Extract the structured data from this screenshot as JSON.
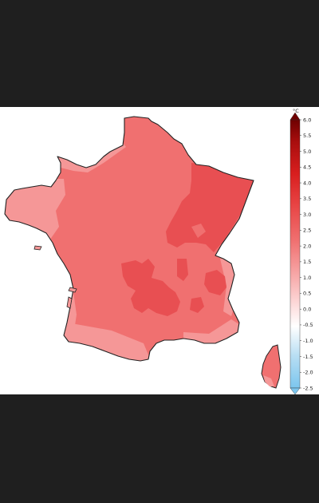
{
  "map": {
    "unit": "°C",
    "colorbar_ticks": [
      "6.0",
      "5.5",
      "5.0",
      "4.5",
      "4.0",
      "3.5",
      "3.0",
      "2.5",
      "2.0",
      "1.5",
      "1.0",
      "0.5",
      "0.0",
      "-0.5",
      "-1.0",
      "-1.5",
      "-2.0",
      "-2.5"
    ],
    "colors": {
      "dominant_anomaly": "#f07070",
      "northeast_anomaly": "#e84f52",
      "coastal_anomaly": "#f59797",
      "outline": "#222222"
    },
    "regions": [
      {
        "name": "mainland",
        "level": "2.5"
      },
      {
        "name": "north-east",
        "level": "3.0"
      },
      {
        "name": "massif-central",
        "level": "3.0"
      },
      {
        "name": "coasts",
        "level": "2.0"
      },
      {
        "name": "corsica",
        "level": "2.5"
      }
    ]
  }
}
